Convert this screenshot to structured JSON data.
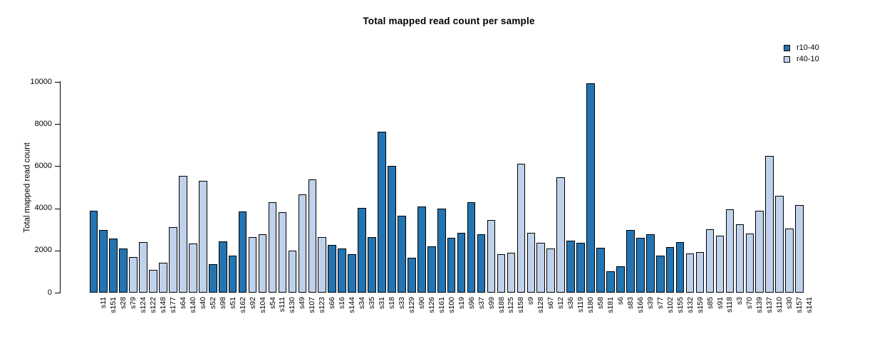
{
  "chart_data": {
    "type": "bar",
    "title": "Total mapped read count per sample",
    "ylabel": "Total mapped read count",
    "xlabel": "",
    "ylim": [
      0,
      10000
    ],
    "yticks": [
      0,
      2000,
      4000,
      6000,
      8000,
      10000
    ],
    "grid": false,
    "legend": {
      "position": "top-right",
      "entries": [
        {
          "label": "r10-40",
          "color": "#2374B2"
        },
        {
          "label": "r40-10",
          "color": "#BFD1EB"
        }
      ]
    },
    "bars": [
      {
        "sample": "s11",
        "value": 3880,
        "group": "r10-40"
      },
      {
        "sample": "s151",
        "value": 2960,
        "group": "r10-40"
      },
      {
        "sample": "s28",
        "value": 2560,
        "group": "r10-40"
      },
      {
        "sample": "s79",
        "value": 2100,
        "group": "r10-40"
      },
      {
        "sample": "s124",
        "value": 1700,
        "group": "r40-10"
      },
      {
        "sample": "s122",
        "value": 2400,
        "group": "r40-10"
      },
      {
        "sample": "s148",
        "value": 1090,
        "group": "r40-10"
      },
      {
        "sample": "s177",
        "value": 1420,
        "group": "r40-10"
      },
      {
        "sample": "s64",
        "value": 3100,
        "group": "r40-10"
      },
      {
        "sample": "s140",
        "value": 5550,
        "group": "r40-10"
      },
      {
        "sample": "s40",
        "value": 2320,
        "group": "r40-10"
      },
      {
        "sample": "s52",
        "value": 5320,
        "group": "r40-10"
      },
      {
        "sample": "s98",
        "value": 1340,
        "group": "r10-40"
      },
      {
        "sample": "s51",
        "value": 2430,
        "group": "r10-40"
      },
      {
        "sample": "s162",
        "value": 1750,
        "group": "r10-40"
      },
      {
        "sample": "s92",
        "value": 3840,
        "group": "r10-40"
      },
      {
        "sample": "s104",
        "value": 2620,
        "group": "r40-10"
      },
      {
        "sample": "s54",
        "value": 2780,
        "group": "r40-10"
      },
      {
        "sample": "s111",
        "value": 4280,
        "group": "r40-10"
      },
      {
        "sample": "s130",
        "value": 3820,
        "group": "r40-10"
      },
      {
        "sample": "s49",
        "value": 2000,
        "group": "r40-10"
      },
      {
        "sample": "s107",
        "value": 4650,
        "group": "r40-10"
      },
      {
        "sample": "s123",
        "value": 5380,
        "group": "r40-10"
      },
      {
        "sample": "s66",
        "value": 2620,
        "group": "r40-10"
      },
      {
        "sample": "s16",
        "value": 2250,
        "group": "r10-40"
      },
      {
        "sample": "s144",
        "value": 2080,
        "group": "r10-40"
      },
      {
        "sample": "s34",
        "value": 1840,
        "group": "r10-40"
      },
      {
        "sample": "s35",
        "value": 4030,
        "group": "r10-40"
      },
      {
        "sample": "s31",
        "value": 2650,
        "group": "r10-40"
      },
      {
        "sample": "s18",
        "value": 7640,
        "group": "r10-40"
      },
      {
        "sample": "s33",
        "value": 6030,
        "group": "r10-40"
      },
      {
        "sample": "s129",
        "value": 3660,
        "group": "r10-40"
      },
      {
        "sample": "s90",
        "value": 1650,
        "group": "r10-40"
      },
      {
        "sample": "s126",
        "value": 4080,
        "group": "r10-40"
      },
      {
        "sample": "s161",
        "value": 2200,
        "group": "r10-40"
      },
      {
        "sample": "s100",
        "value": 4000,
        "group": "r10-40"
      },
      {
        "sample": "s19",
        "value": 2600,
        "group": "r10-40"
      },
      {
        "sample": "s96",
        "value": 2840,
        "group": "r10-40"
      },
      {
        "sample": "s37",
        "value": 4300,
        "group": "r10-40"
      },
      {
        "sample": "s99",
        "value": 2760,
        "group": "r10-40"
      },
      {
        "sample": "s188",
        "value": 3440,
        "group": "r40-10"
      },
      {
        "sample": "s125",
        "value": 1820,
        "group": "r40-10"
      },
      {
        "sample": "s158",
        "value": 1900,
        "group": "r40-10"
      },
      {
        "sample": "s9",
        "value": 6130,
        "group": "r40-10"
      },
      {
        "sample": "s128",
        "value": 2840,
        "group": "r40-10"
      },
      {
        "sample": "s67",
        "value": 2350,
        "group": "r40-10"
      },
      {
        "sample": "s12",
        "value": 2110,
        "group": "r40-10"
      },
      {
        "sample": "s36",
        "value": 5470,
        "group": "r40-10"
      },
      {
        "sample": "s119",
        "value": 2450,
        "group": "r10-40"
      },
      {
        "sample": "s180",
        "value": 2350,
        "group": "r10-40"
      },
      {
        "sample": "s58",
        "value": 9940,
        "group": "r10-40"
      },
      {
        "sample": "s181",
        "value": 2140,
        "group": "r10-40"
      },
      {
        "sample": "s6",
        "value": 1000,
        "group": "r10-40"
      },
      {
        "sample": "s83",
        "value": 1260,
        "group": "r10-40"
      },
      {
        "sample": "s166",
        "value": 2980,
        "group": "r10-40"
      },
      {
        "sample": "s39",
        "value": 2600,
        "group": "r10-40"
      },
      {
        "sample": "s77",
        "value": 2780,
        "group": "r10-40"
      },
      {
        "sample": "s102",
        "value": 1750,
        "group": "r10-40"
      },
      {
        "sample": "s155",
        "value": 2150,
        "group": "r10-40"
      },
      {
        "sample": "s132",
        "value": 2400,
        "group": "r10-40"
      },
      {
        "sample": "s159",
        "value": 1850,
        "group": "r40-10"
      },
      {
        "sample": "s85",
        "value": 1920,
        "group": "r40-10"
      },
      {
        "sample": "s91",
        "value": 3010,
        "group": "r40-10"
      },
      {
        "sample": "s118",
        "value": 2700,
        "group": "r40-10"
      },
      {
        "sample": "s3",
        "value": 3950,
        "group": "r40-10"
      },
      {
        "sample": "s70",
        "value": 3240,
        "group": "r40-10"
      },
      {
        "sample": "s139",
        "value": 2800,
        "group": "r40-10"
      },
      {
        "sample": "s137",
        "value": 3890,
        "group": "r40-10"
      },
      {
        "sample": "s110",
        "value": 6480,
        "group": "r40-10"
      },
      {
        "sample": "s30",
        "value": 4580,
        "group": "r40-10"
      },
      {
        "sample": "s157",
        "value": 3050,
        "group": "r40-10"
      },
      {
        "sample": "s141",
        "value": 4160,
        "group": "r40-10"
      }
    ]
  }
}
